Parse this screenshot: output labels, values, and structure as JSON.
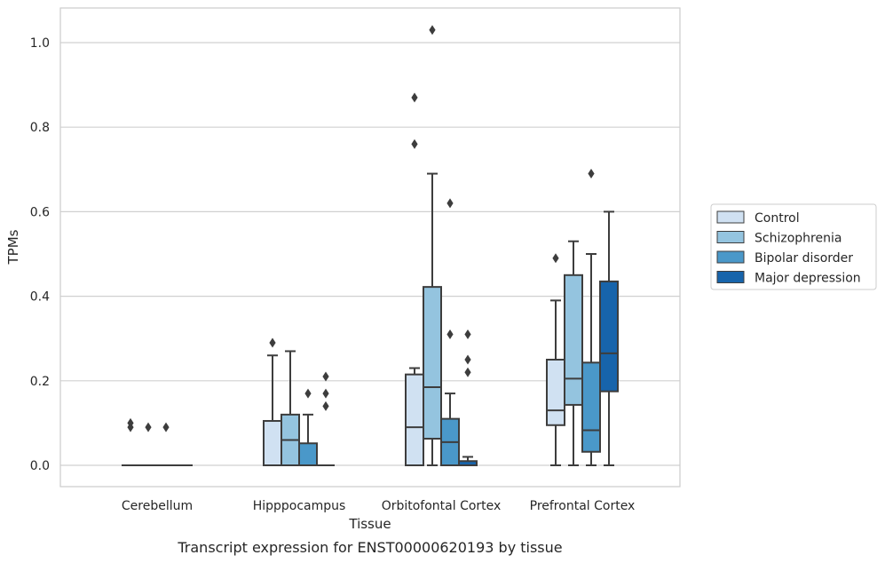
{
  "caption": "Transcript expression for ENST00000620193 by tissue",
  "chart_data": {
    "type": "box",
    "xlabel": "Tissue",
    "ylabel": "TPMs",
    "ylim": [
      -0.05,
      1.08
    ],
    "yticks": [
      "0.0",
      "0.2",
      "0.4",
      "0.6",
      "0.8",
      "1.0"
    ],
    "grid": true,
    "legend_position": "right",
    "categories": [
      "Cerebellum",
      "Hipppocampus",
      "Orbitofontal Cortex",
      "Prefrontal Cortex"
    ],
    "series": [
      {
        "name": "Control",
        "color": "#d0e1f2",
        "boxes": [
          {
            "category": "Cerebellum",
            "whisker_low": 0,
            "q1": 0,
            "median": 0,
            "q3": 0,
            "whisker_high": 0,
            "outliers": [
              0.09,
              0.1
            ]
          },
          {
            "category": "Hipppocampus",
            "whisker_low": 0,
            "q1": 0,
            "median": 0,
            "q3": 0.105,
            "whisker_high": 0.26,
            "outliers": [
              0.29
            ]
          },
          {
            "category": "Orbitofontal Cortex",
            "whisker_low": 0,
            "q1": 0,
            "median": 0.09,
            "q3": 0.215,
            "whisker_high": 0.23,
            "outliers": [
              0.76,
              0.87
            ]
          },
          {
            "category": "Prefrontal Cortex",
            "whisker_low": 0,
            "q1": 0.095,
            "median": 0.13,
            "q3": 0.25,
            "whisker_high": 0.39,
            "outliers": [
              0.49
            ]
          }
        ]
      },
      {
        "name": "Schizophrenia",
        "color": "#94c4df",
        "boxes": [
          {
            "category": "Cerebellum",
            "whisker_low": 0,
            "q1": 0,
            "median": 0,
            "q3": 0,
            "whisker_high": 0,
            "outliers": [
              0.09
            ]
          },
          {
            "category": "Hipppocampus",
            "whisker_low": 0,
            "q1": 0,
            "median": 0.06,
            "q3": 0.12,
            "whisker_high": 0.27,
            "outliers": []
          },
          {
            "category": "Orbitofontal Cortex",
            "whisker_low": 0,
            "q1": 0.063,
            "median": 0.185,
            "q3": 0.422,
            "whisker_high": 0.69,
            "outliers": [
              1.03
            ]
          },
          {
            "category": "Prefrontal Cortex",
            "whisker_low": 0,
            "q1": 0.143,
            "median": 0.205,
            "q3": 0.45,
            "whisker_high": 0.53,
            "outliers": []
          }
        ]
      },
      {
        "name": "Bipolar disorder",
        "color": "#4a98c9",
        "boxes": [
          {
            "category": "Cerebellum",
            "whisker_low": 0,
            "q1": 0,
            "median": 0,
            "q3": 0,
            "whisker_high": 0,
            "outliers": [
              0.09
            ]
          },
          {
            "category": "Hipppocampus",
            "whisker_low": 0,
            "q1": 0,
            "median": 0,
            "q3": 0.052,
            "whisker_high": 0.12,
            "outliers": [
              0.17
            ]
          },
          {
            "category": "Orbitofontal Cortex",
            "whisker_low": 0,
            "q1": 0,
            "median": 0.055,
            "q3": 0.11,
            "whisker_high": 0.17,
            "outliers": [
              0.31,
              0.62
            ]
          },
          {
            "category": "Prefrontal Cortex",
            "whisker_low": 0,
            "q1": 0.032,
            "median": 0.083,
            "q3": 0.243,
            "whisker_high": 0.5,
            "outliers": [
              0.69
            ]
          }
        ]
      },
      {
        "name": "Major depression",
        "color": "#1764ab",
        "boxes": [
          {
            "category": "Cerebellum",
            "whisker_low": 0,
            "q1": 0,
            "median": 0,
            "q3": 0,
            "whisker_high": 0,
            "outliers": []
          },
          {
            "category": "Hipppocampus",
            "whisker_low": 0,
            "q1": 0,
            "median": 0,
            "q3": 0,
            "whisker_high": 0,
            "outliers": [
              0.14,
              0.17,
              0.21
            ]
          },
          {
            "category": "Orbitofontal Cortex",
            "whisker_low": 0,
            "q1": 0,
            "median": 0,
            "q3": 0.01,
            "whisker_high": 0.02,
            "outliers": [
              0.22,
              0.25,
              0.31
            ]
          },
          {
            "category": "Prefrontal Cortex",
            "whisker_low": 0,
            "q1": 0.175,
            "median": 0.265,
            "q3": 0.435,
            "whisker_high": 0.6,
            "outliers": []
          }
        ]
      }
    ]
  }
}
